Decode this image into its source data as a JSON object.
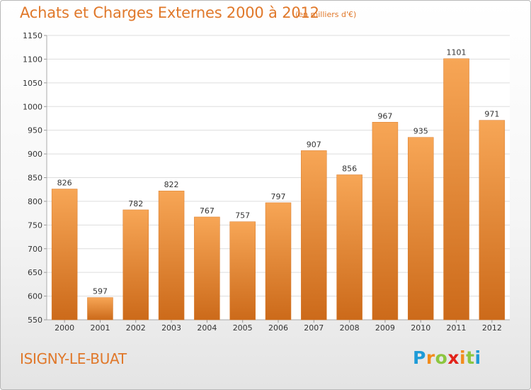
{
  "header": {
    "title": "Achats et Charges Externes 2000 à 2012",
    "subtitle": "(en milliers d'€)"
  },
  "footer": {
    "commune": "ISIGNY-LE-BUAT",
    "logo_letters": [
      "P",
      "r",
      "o",
      "x",
      "i",
      "t",
      "i"
    ],
    "logo_colors": [
      "#1e9bd7",
      "#f28c1c",
      "#8cc63f",
      "#e2231a",
      "#f28c1c",
      "#8cc63f",
      "#1e9bd7"
    ]
  },
  "colors": {
    "bar_top": "#f7a656",
    "bar_bottom": "#cc6a1a",
    "text": "#333333",
    "grid": "#dddddd",
    "accent": "#e0782a"
  },
  "chart_data": {
    "type": "bar",
    "categories": [
      "2000",
      "2001",
      "2002",
      "2003",
      "2004",
      "2005",
      "2006",
      "2007",
      "2008",
      "2009",
      "2010",
      "2011",
      "2012"
    ],
    "values": [
      826,
      597,
      782,
      822,
      767,
      757,
      797,
      907,
      856,
      967,
      935,
      1101,
      971
    ],
    "title": "Achats et Charges Externes 2000 à 2012",
    "subtitle": "(en milliers d'€)",
    "xlabel": "",
    "ylabel": "",
    "ylim": [
      550,
      1150
    ],
    "yticks": [
      550,
      600,
      650,
      700,
      750,
      800,
      850,
      900,
      950,
      1000,
      1050,
      1100,
      1150
    ],
    "grid": true,
    "legend": "none"
  }
}
